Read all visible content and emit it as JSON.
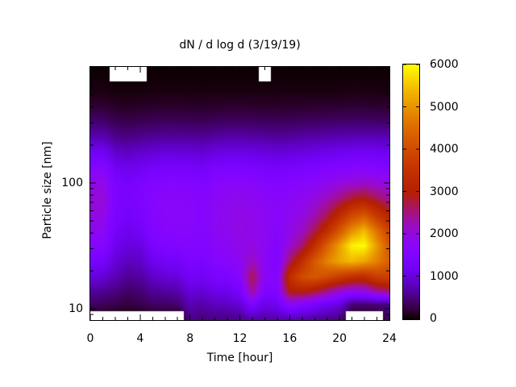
{
  "chart_data": {
    "type": "heatmap",
    "title": "dN / d log d (3/19/19)",
    "xlabel": "Time [hour]",
    "ylabel": "Particle size [nm]",
    "x_axis": {
      "min": 0,
      "max": 24,
      "major_ticks": [
        0,
        4,
        8,
        12,
        16,
        20,
        24
      ],
      "minor_tick_step": 1
    },
    "y_axis": {
      "scale": "log",
      "min": 8.1,
      "max": 840,
      "major_ticks": [
        10,
        100
      ],
      "minor_ticks": [
        9,
        20,
        30,
        40,
        50,
        60,
        70,
        80,
        90,
        200,
        300,
        400,
        500,
        600,
        700,
        800
      ]
    },
    "colorbar": {
      "min": 0,
      "max": 6000,
      "ticks": [
        0,
        1000,
        2000,
        3000,
        4000,
        5000,
        6000
      ],
      "palette": "gnuplot-pm3d-black-violet-red-yellow",
      "missing_data_color": "#ffffff"
    },
    "x_hours": [
      0,
      1,
      2,
      3,
      4,
      5,
      6,
      7,
      8,
      9,
      10,
      11,
      12,
      13,
      14,
      15,
      16,
      17,
      18,
      19,
      20,
      21,
      22,
      23,
      24
    ],
    "size_bins_nm": [
      8.5,
      11,
      14,
      18,
      24,
      32,
      42,
      56,
      75,
      100,
      133,
      178,
      237,
      316,
      422,
      563,
      750
    ],
    "values_dN_dlogd": [
      [
        null,
        400,
        650,
        1000,
        1350,
        1650,
        1850,
        1950,
        2000,
        1900,
        1600,
        1150,
        700,
        400,
        180,
        60,
        20
      ],
      [
        null,
        350,
        600,
        950,
        1300,
        1600,
        1800,
        1950,
        2050,
        1950,
        1650,
        1200,
        720,
        400,
        180,
        60,
        20
      ],
      [
        null,
        300,
        500,
        750,
        950,
        1150,
        1300,
        1400,
        1450,
        1400,
        1200,
        870,
        540,
        300,
        130,
        40,
        null
      ],
      [
        null,
        250,
        400,
        600,
        800,
        1000,
        1150,
        1300,
        1380,
        1330,
        1130,
        820,
        510,
        280,
        120,
        40,
        null
      ],
      [
        null,
        300,
        450,
        650,
        850,
        1050,
        1250,
        1400,
        1480,
        1420,
        1200,
        880,
        550,
        300,
        130,
        40,
        null
      ],
      [
        null,
        400,
        600,
        850,
        1150,
        1400,
        1550,
        1620,
        1630,
        1530,
        1300,
        940,
        590,
        320,
        140,
        50,
        20
      ],
      [
        null,
        400,
        650,
        950,
        1250,
        1500,
        1650,
        1700,
        1700,
        1600,
        1350,
        980,
        610,
        330,
        150,
        50,
        20
      ],
      [
        null,
        450,
        700,
        1000,
        1300,
        1550,
        1680,
        1720,
        1700,
        1600,
        1340,
        970,
        610,
        330,
        150,
        50,
        20
      ],
      [
        550,
        750,
        1000,
        1250,
        1450,
        1600,
        1680,
        1700,
        1680,
        1570,
        1320,
        960,
        600,
        320,
        140,
        50,
        20
      ],
      [
        500,
        700,
        950,
        1200,
        1400,
        1500,
        1580,
        1600,
        1590,
        1490,
        1260,
        920,
        580,
        310,
        140,
        40,
        20
      ],
      [
        550,
        800,
        1100,
        1400,
        1600,
        1700,
        1780,
        1800,
        1760,
        1650,
        1400,
        1020,
        640,
        340,
        150,
        50,
        20
      ],
      [
        550,
        850,
        1150,
        1450,
        1650,
        1780,
        1850,
        1860,
        1820,
        1700,
        1430,
        1050,
        660,
        350,
        160,
        50,
        20
      ],
      [
        600,
        950,
        1350,
        1650,
        1800,
        1900,
        1950,
        1930,
        1870,
        1720,
        1450,
        1060,
        670,
        360,
        160,
        50,
        20
      ],
      [
        750,
        1500,
        2400,
        2700,
        2200,
        1950,
        1900,
        1880,
        1820,
        1680,
        1400,
        1030,
        650,
        350,
        150,
        50,
        20
      ],
      [
        700,
        1100,
        1500,
        1750,
        1750,
        1800,
        1820,
        1800,
        1750,
        1620,
        1360,
        1000,
        630,
        340,
        150,
        50,
        null
      ],
      [
        750,
        1200,
        1550,
        1600,
        1500,
        1550,
        1650,
        1700,
        1650,
        1540,
        1300,
        950,
        600,
        330,
        140,
        50,
        20
      ],
      [
        800,
        1800,
        3000,
        3400,
        2600,
        2050,
        1900,
        1820,
        1750,
        1600,
        1350,
        990,
        620,
        340,
        150,
        50,
        20
      ],
      [
        750,
        1600,
        3100,
        4000,
        3400,
        2550,
        2150,
        1950,
        1820,
        1660,
        1390,
        1020,
        650,
        350,
        150,
        50,
        20
      ],
      [
        700,
        1400,
        2900,
        4200,
        4200,
        3400,
        2650,
        2250,
        1980,
        1750,
        1450,
        1060,
        670,
        360,
        160,
        50,
        20
      ],
      [
        600,
        1200,
        2500,
        4000,
        4800,
        4300,
        3350,
        2650,
        2200,
        1850,
        1500,
        1100,
        690,
        370,
        160,
        50,
        20
      ],
      [
        550,
        1000,
        2100,
        3700,
        5200,
        5100,
        4150,
        3300,
        2500,
        1980,
        1560,
        1140,
        710,
        380,
        160,
        50,
        20
      ],
      [
        null,
        500,
        1900,
        3400,
        5400,
        5900,
        4950,
        3900,
        2850,
        2060,
        1600,
        1170,
        730,
        390,
        170,
        60,
        20
      ],
      [
        null,
        450,
        2000,
        3300,
        5200,
        6000,
        5400,
        4200,
        3000,
        2120,
        1630,
        1190,
        740,
        390,
        170,
        60,
        20
      ],
      [
        null,
        500,
        2400,
        3700,
        4800,
        5100,
        4600,
        3600,
        2700,
        2050,
        1600,
        1170,
        730,
        380,
        160,
        50,
        20
      ],
      [
        450,
        500,
        2600,
        3800,
        4300,
        4200,
        3800,
        3100,
        2400,
        1950,
        1550,
        1130,
        710,
        370,
        160,
        50,
        20
      ]
    ]
  },
  "colors": {
    "background": "#ffffff",
    "frame": "#000000",
    "text": "#000000",
    "peak_color": "#ffff00",
    "low_color": "#000000"
  }
}
